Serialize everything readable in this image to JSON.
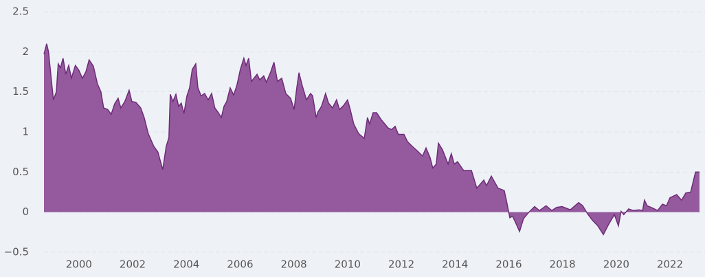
{
  "chart_data": {
    "type": "area",
    "x": [
      1998.7,
      1998.8,
      1998.87,
      1999.05,
      1999.16,
      1999.23,
      1999.31,
      1999.41,
      1999.51,
      1999.62,
      1999.72,
      1999.87,
      2000.0,
      2000.13,
      2000.26,
      2000.38,
      2000.54,
      2000.69,
      2000.82,
      2000.92,
      2001.07,
      2001.2,
      2001.33,
      2001.46,
      2001.56,
      2001.71,
      2001.87,
      2001.97,
      2002.12,
      2002.3,
      2002.43,
      2002.58,
      2002.79,
      2002.94,
      2003.12,
      2003.25,
      2003.35,
      2003.4,
      2003.5,
      2003.61,
      2003.71,
      2003.81,
      2003.91,
      2004.02,
      2004.12,
      2004.22,
      2004.35,
      2004.43,
      2004.55,
      2004.68,
      2004.81,
      2004.94,
      2005.06,
      2005.19,
      2005.3,
      2005.4,
      2005.5,
      2005.63,
      2005.76,
      2005.88,
      2006.01,
      2006.14,
      2006.22,
      2006.32,
      2006.42,
      2006.63,
      2006.73,
      2006.88,
      2006.98,
      2007.14,
      2007.26,
      2007.39,
      2007.55,
      2007.7,
      2007.88,
      2008.01,
      2008.11,
      2008.19,
      2008.31,
      2008.47,
      2008.62,
      2008.7,
      2008.83,
      2008.9,
      2009.03,
      2009.18,
      2009.29,
      2009.44,
      2009.59,
      2009.7,
      2009.85,
      2010.0,
      2010.1,
      2010.23,
      2010.41,
      2010.62,
      2010.74,
      2010.82,
      2010.95,
      2011.08,
      2011.26,
      2011.51,
      2011.64,
      2011.77,
      2011.89,
      2012.1,
      2012.23,
      2012.41,
      2012.61,
      2012.79,
      2012.92,
      2013.07,
      2013.17,
      2013.3,
      2013.38,
      2013.53,
      2013.74,
      2013.86,
      2013.97,
      2014.09,
      2014.32,
      2014.61,
      2014.81,
      2015.07,
      2015.17,
      2015.35,
      2015.6,
      2015.83,
      2015.91,
      2016.04,
      2016.14,
      2016.24,
      2016.4,
      2016.55,
      2016.75,
      2016.96,
      2017.14,
      2017.39,
      2017.6,
      2017.78,
      2017.98,
      2018.29,
      2018.6,
      2018.75,
      2018.93,
      2019.11,
      2019.31,
      2019.52,
      2019.72,
      2019.93,
      2020.08,
      2020.18,
      2020.28,
      2020.46,
      2020.64,
      2020.85,
      2020.98,
      2021.05,
      2021.15,
      2021.36,
      2021.54,
      2021.72,
      2021.87,
      2022.0,
      2022.25,
      2022.43,
      2022.59,
      2022.77,
      2022.95,
      2023.1
    ],
    "values": [
      1.97,
      2.1,
      2.0,
      1.4,
      1.5,
      1.85,
      1.8,
      1.92,
      1.72,
      1.83,
      1.67,
      1.83,
      1.77,
      1.67,
      1.75,
      1.9,
      1.82,
      1.6,
      1.5,
      1.3,
      1.28,
      1.22,
      1.35,
      1.42,
      1.3,
      1.38,
      1.52,
      1.38,
      1.37,
      1.3,
      1.18,
      0.98,
      0.82,
      0.75,
      0.53,
      0.82,
      0.93,
      1.47,
      1.38,
      1.47,
      1.32,
      1.36,
      1.23,
      1.45,
      1.55,
      1.78,
      1.85,
      1.55,
      1.45,
      1.48,
      1.4,
      1.48,
      1.3,
      1.24,
      1.18,
      1.32,
      1.38,
      1.55,
      1.46,
      1.58,
      1.78,
      1.92,
      1.83,
      1.92,
      1.63,
      1.72,
      1.65,
      1.7,
      1.62,
      1.75,
      1.87,
      1.63,
      1.67,
      1.48,
      1.42,
      1.28,
      1.55,
      1.74,
      1.58,
      1.4,
      1.48,
      1.45,
      1.18,
      1.25,
      1.32,
      1.48,
      1.36,
      1.3,
      1.4,
      1.28,
      1.33,
      1.4,
      1.28,
      1.1,
      0.98,
      0.92,
      1.18,
      1.1,
      1.24,
      1.24,
      1.15,
      1.05,
      1.03,
      1.07,
      0.97,
      0.97,
      0.88,
      0.82,
      0.76,
      0.7,
      0.8,
      0.68,
      0.55,
      0.6,
      0.86,
      0.78,
      0.6,
      0.73,
      0.6,
      0.63,
      0.52,
      0.52,
      0.3,
      0.4,
      0.33,
      0.45,
      0.3,
      0.27,
      0.15,
      -0.07,
      -0.05,
      -0.12,
      -0.24,
      -0.08,
      0.0,
      0.07,
      0.02,
      0.08,
      0.02,
      0.06,
      0.07,
      0.03,
      0.12,
      0.08,
      -0.02,
      -0.1,
      -0.17,
      -0.28,
      -0.15,
      -0.03,
      -0.17,
      0.01,
      -0.03,
      0.04,
      0.02,
      0.03,
      0.02,
      0.15,
      0.08,
      0.05,
      0.02,
      0.1,
      0.08,
      0.18,
      0.22,
      0.15,
      0.24,
      0.25,
      0.5,
      0.5
    ],
    "color": "#955a9d",
    "line_color": "#6d2c77",
    "xlim": [
      1998.7,
      2023.15
    ],
    "xticks": [
      2000,
      2002,
      2004,
      2006,
      2008,
      2010,
      2012,
      2014,
      2016,
      2018,
      2020,
      2022
    ],
    "ylim": [
      -0.5,
      2.5
    ],
    "yticks": [
      {
        "value": -0.5,
        "label": "−0.5"
      },
      0,
      0.5,
      1,
      1.5,
      2,
      2.5
    ],
    "grid": true
  }
}
